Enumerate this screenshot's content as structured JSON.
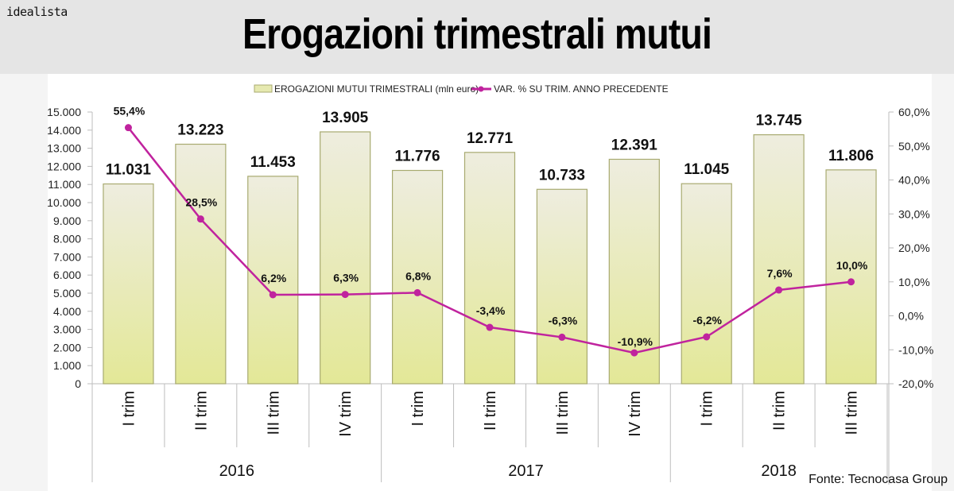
{
  "header": {
    "brand": "idealista",
    "title": "Erogazioni trimestrali mutui"
  },
  "source": "Fonte: Tecnocasa Group",
  "colors": {
    "bar_top": "#eeeddf",
    "bar_bottom": "#e3e897",
    "bar_border": "#a8aa70",
    "line": "#c0239e",
    "axis": "#bdbdbd",
    "text": "#222222"
  },
  "chart_data": {
    "type": "bar+line",
    "title": "Erogazioni trimestrali mutui",
    "categories": [
      "I trim",
      "II trim",
      "III trim",
      "IV trim",
      "I trim",
      "II trim",
      "III trim",
      "IV trim",
      "I trim",
      "II trim",
      "III trim"
    ],
    "groups": [
      {
        "label": "2016",
        "start": 0,
        "count": 4
      },
      {
        "label": "2017",
        "start": 4,
        "count": 4
      },
      {
        "label": "2018",
        "start": 8,
        "count": 3
      }
    ],
    "series": [
      {
        "name": "EROGAZIONI MUTUI TRIMESTRALI (mln euro)",
        "type": "bar",
        "axis": "left",
        "values": [
          11031,
          13223,
          11453,
          13905,
          11776,
          12771,
          10733,
          12391,
          11045,
          13745,
          11806
        ],
        "labels": [
          "11.031",
          "13.223",
          "11.453",
          "13.905",
          "11.776",
          "12.771",
          "10.733",
          "12.391",
          "11.045",
          "13.745",
          "11.806"
        ]
      },
      {
        "name": "VAR. % SU TRIM. ANNO PRECEDENTE",
        "type": "line",
        "axis": "right",
        "values": [
          55.4,
          28.5,
          6.2,
          6.3,
          6.8,
          -3.4,
          -6.3,
          -10.9,
          -6.2,
          7.6,
          10.0
        ],
        "labels": [
          "55,4%",
          "28,5%",
          "6,2%",
          "6,3%",
          "6,8%",
          "-3,4%",
          "-6,3%",
          "-10,9%",
          "-6,2%",
          "7,6%",
          "10,0%"
        ]
      }
    ],
    "y_left": {
      "min": 0,
      "max": 15000,
      "step": 1000,
      "tick_labels": [
        "0",
        "1.000",
        "2.000",
        "3.000",
        "4.000",
        "5.000",
        "6.000",
        "7.000",
        "8.000",
        "9.000",
        "10.000",
        "11.000",
        "12.000",
        "13.000",
        "14.000",
        "15.000"
      ]
    },
    "y_right": {
      "min": -20,
      "max": 60,
      "step": 10,
      "tick_labels": [
        "-20,0%",
        "-10,0%",
        "0,0%",
        "10,0%",
        "20,0%",
        "30,0%",
        "40,0%",
        "50,0%",
        "60,0%"
      ]
    },
    "legend": {
      "position": "top",
      "entries": [
        "EROGAZIONI MUTUI TRIMESTRALI (mln euro)",
        "VAR. % SU TRIM. ANNO PRECEDENTE"
      ]
    },
    "grid": false,
    "xlabel": "",
    "ylabel": ""
  }
}
